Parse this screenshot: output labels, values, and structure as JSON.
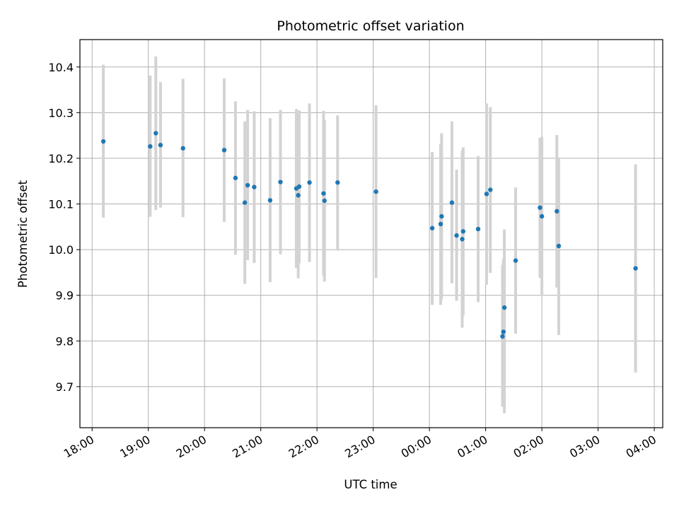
{
  "chart_data": {
    "type": "scatter",
    "title": "Photometric offset variation",
    "xlabel": "UTC time",
    "ylabel": "Photometric offset",
    "x_ticks": [
      "18:00",
      "19:00",
      "20:00",
      "21:00",
      "22:00",
      "23:00",
      "00:00",
      "01:00",
      "02:00",
      "03:00",
      "04:00"
    ],
    "y_ticks": [
      "9.7",
      "9.8",
      "9.9",
      "10.0",
      "10.1",
      "10.2",
      "10.3",
      "10.4"
    ],
    "xlim": [
      "2023-01-01T17:47",
      "2023-01-02T04:09"
    ],
    "ylim": [
      9.61,
      10.46
    ],
    "grid": true,
    "colors": {
      "point": "#1f77b4",
      "errorbar": "#d3d3d3",
      "grid": "#b0b0b0"
    },
    "series": [
      {
        "points": [
          {
            "x": "2023-01-01T18:12",
            "y": 10.237,
            "ylow": 10.07,
            "yhigh": 10.405
          },
          {
            "x": "2023-01-01T19:02",
            "y": 10.226,
            "ylow": 10.072,
            "yhigh": 10.381
          },
          {
            "x": "2023-01-01T19:08",
            "y": 10.255,
            "ylow": 10.087,
            "yhigh": 10.423
          },
          {
            "x": "2023-01-01T19:13",
            "y": 10.229,
            "ylow": 10.092,
            "yhigh": 10.367
          },
          {
            "x": "2023-01-01T19:37",
            "y": 10.222,
            "ylow": 10.071,
            "yhigh": 10.374
          },
          {
            "x": "2023-01-01T20:21",
            "y": 10.218,
            "ylow": 10.061,
            "yhigh": 10.375
          },
          {
            "x": "2023-01-01T20:33",
            "y": 10.157,
            "ylow": 9.989,
            "yhigh": 10.325
          },
          {
            "x": "2023-01-01T20:43",
            "y": 10.103,
            "ylow": 9.925,
            "yhigh": 10.281
          },
          {
            "x": "2023-01-01T20:46",
            "y": 10.141,
            "ylow": 9.977,
            "yhigh": 10.306
          },
          {
            "x": "2023-01-01T20:53",
            "y": 10.137,
            "ylow": 9.971,
            "yhigh": 10.303
          },
          {
            "x": "2023-01-01T21:10",
            "y": 10.108,
            "ylow": 9.929,
            "yhigh": 10.288
          },
          {
            "x": "2023-01-01T21:21",
            "y": 10.148,
            "ylow": 9.99,
            "yhigh": 10.306
          },
          {
            "x": "2023-01-01T21:38",
            "y": 10.134,
            "ylow": 9.96,
            "yhigh": 10.308
          },
          {
            "x": "2023-01-01T21:40",
            "y": 10.119,
            "ylow": 9.937,
            "yhigh": 10.301
          },
          {
            "x": "2023-01-01T21:41",
            "y": 10.138,
            "ylow": 9.97,
            "yhigh": 10.305
          },
          {
            "x": "2023-01-01T21:52",
            "y": 10.147,
            "ylow": 9.973,
            "yhigh": 10.32
          },
          {
            "x": "2023-01-01T22:07",
            "y": 10.123,
            "ylow": 9.943,
            "yhigh": 10.304
          },
          {
            "x": "2023-01-01T22:08",
            "y": 10.107,
            "ylow": 9.93,
            "yhigh": 10.284
          },
          {
            "x": "2023-01-01T22:22",
            "y": 10.147,
            "ylow": 9.998,
            "yhigh": 10.294
          },
          {
            "x": "2023-01-01T23:03",
            "y": 10.127,
            "ylow": 9.938,
            "yhigh": 10.316
          },
          {
            "x": "2023-01-02T00:03",
            "y": 10.047,
            "ylow": 9.879,
            "yhigh": 10.214
          },
          {
            "x": "2023-01-02T00:12",
            "y": 10.056,
            "ylow": 9.879,
            "yhigh": 10.232
          },
          {
            "x": "2023-01-02T00:13",
            "y": 10.073,
            "ylow": 9.891,
            "yhigh": 10.255
          },
          {
            "x": "2023-01-02T00:24",
            "y": 10.103,
            "ylow": 9.926,
            "yhigh": 10.281
          },
          {
            "x": "2023-01-02T00:29",
            "y": 10.031,
            "ylow": 9.888,
            "yhigh": 10.175
          },
          {
            "x": "2023-01-02T00:35",
            "y": 10.023,
            "ylow": 9.829,
            "yhigh": 10.217
          },
          {
            "x": "2023-01-02T00:36",
            "y": 10.04,
            "ylow": 9.856,
            "yhigh": 10.224
          },
          {
            "x": "2023-01-02T00:52",
            "y": 10.045,
            "ylow": 9.885,
            "yhigh": 10.205
          },
          {
            "x": "2023-01-02T01:01",
            "y": 10.122,
            "ylow": 9.923,
            "yhigh": 10.32
          },
          {
            "x": "2023-01-02T01:05",
            "y": 10.131,
            "ylow": 9.949,
            "yhigh": 10.312
          },
          {
            "x": "2023-01-02T01:18",
            "y": 9.81,
            "ylow": 9.656,
            "yhigh": 9.967
          },
          {
            "x": "2023-01-02T01:19",
            "y": 9.82,
            "ylow": 9.66,
            "yhigh": 9.98
          },
          {
            "x": "2023-01-02T01:20",
            "y": 9.873,
            "ylow": 9.642,
            "yhigh": 10.044
          },
          {
            "x": "2023-01-02T01:32",
            "y": 9.976,
            "ylow": 9.816,
            "yhigh": 10.136
          },
          {
            "x": "2023-01-02T01:58",
            "y": 10.092,
            "ylow": 9.938,
            "yhigh": 10.245
          },
          {
            "x": "2023-01-02T02:00",
            "y": 10.073,
            "ylow": 9.899,
            "yhigh": 10.247
          },
          {
            "x": "2023-01-02T02:16",
            "y": 10.084,
            "ylow": 9.917,
            "yhigh": 10.251
          },
          {
            "x": "2023-01-02T02:18",
            "y": 10.008,
            "ylow": 9.813,
            "yhigh": 10.202
          },
          {
            "x": "2023-01-02T03:40",
            "y": 9.959,
            "ylow": 9.731,
            "yhigh": 10.187
          }
        ]
      }
    ]
  }
}
